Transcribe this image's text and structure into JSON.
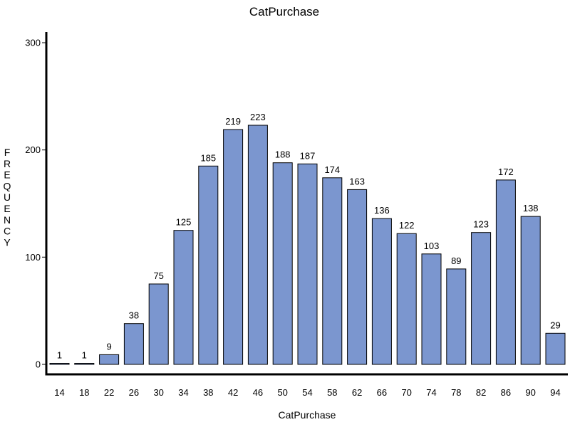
{
  "chart_data": {
    "type": "bar",
    "title": "CatPurchase",
    "xlabel": "CatPurchase",
    "ylabel": "FREQUENCY",
    "categories": [
      "14",
      "18",
      "22",
      "26",
      "30",
      "34",
      "38",
      "42",
      "46",
      "50",
      "54",
      "58",
      "62",
      "66",
      "70",
      "74",
      "78",
      "82",
      "86",
      "90",
      "94"
    ],
    "values": [
      1,
      1,
      9,
      38,
      75,
      125,
      185,
      219,
      223,
      188,
      187,
      174,
      163,
      136,
      122,
      103,
      89,
      123,
      172,
      138,
      29
    ],
    "yticks": [
      0,
      100,
      200,
      300
    ],
    "ylim": [
      0,
      300
    ],
    "grid": false,
    "bar_color": "#7b96cf"
  }
}
